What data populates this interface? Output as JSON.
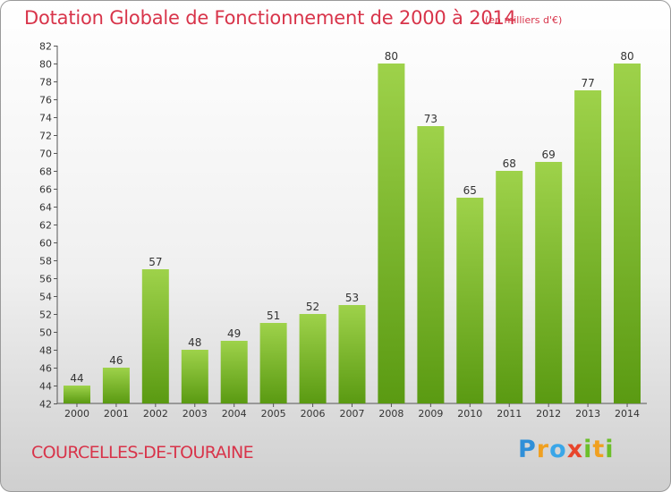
{
  "header": {
    "title": "Dotation Globale de Fonctionnement de 2000 à 2014",
    "unit": "(en milliers d'€)"
  },
  "footer": {
    "commune": "COURCELLES-DE-TOURAINE",
    "logo": "Proxiti"
  },
  "colors": {
    "bar_light": "#9ed24a",
    "bar_dark": "#5a9a12",
    "text_accent": "#d8344a"
  },
  "chart_data": {
    "type": "bar",
    "title": "Dotation Globale de Fonctionnement de 2000 à 2014",
    "subtitle": "(en milliers d'€)",
    "xlabel": "",
    "ylabel": "",
    "categories": [
      "2000",
      "2001",
      "2002",
      "2003",
      "2004",
      "2005",
      "2006",
      "2007",
      "2008",
      "2009",
      "2010",
      "2011",
      "2012",
      "2013",
      "2014"
    ],
    "values": [
      44,
      46,
      57,
      48,
      49,
      51,
      52,
      53,
      80,
      73,
      65,
      68,
      69,
      77,
      80
    ],
    "ylim": [
      42,
      82
    ],
    "yticks": [
      42,
      44,
      46,
      48,
      50,
      52,
      54,
      56,
      58,
      60,
      62,
      64,
      66,
      68,
      70,
      72,
      74,
      76,
      78,
      80,
      82
    ],
    "grid": false,
    "legend": "none"
  }
}
